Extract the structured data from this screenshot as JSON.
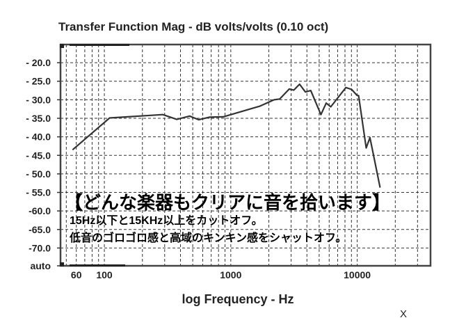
{
  "chart_data": {
    "type": "line",
    "title": "Transfer Function Mag - dB volts/volts (0.10 oct)",
    "xlabel": "log Frequency - Hz",
    "ylabel": "",
    "xscale": "log",
    "xlim": [
      45,
      38000
    ],
    "ylim": [
      -74.8,
      -15.1
    ],
    "grid": true,
    "x_ticks": [
      {
        "value": 60,
        "label": "60"
      },
      {
        "value": 100,
        "label": "100"
      },
      {
        "value": 1000,
        "label": "1000"
      },
      {
        "value": 10000,
        "label": "10000"
      }
    ],
    "y_ticks": [
      {
        "value": -20,
        "label": "- 20.0"
      },
      {
        "value": -25,
        "label": "- 25.0"
      },
      {
        "value": -30,
        "label": "- 30.0"
      },
      {
        "value": -35,
        "label": "- 35.0"
      },
      {
        "value": -40,
        "label": "- 40.0"
      },
      {
        "value": -45,
        "label": "- 45.0"
      },
      {
        "value": -50,
        "label": "- 50.0"
      },
      {
        "value": -55,
        "label": "- 55.0"
      },
      {
        "value": -60,
        "label": "-60.0"
      },
      {
        "value": -65,
        "label": "-65.0"
      },
      {
        "value": -70,
        "label": "-70.0"
      },
      {
        "value": -74.8,
        "label": "auto"
      }
    ],
    "series": [
      {
        "color": "#333333",
        "x": [
          56,
          110,
          290,
          374,
          472,
          558,
          676,
          871,
          1706,
          2200,
          2440,
          2900,
          3150,
          3500,
          3890,
          4290,
          5160,
          5680,
          6180,
          8130,
          9030,
          9950,
          10250,
          11780,
          12600,
          15170
        ],
        "y": [
          -43.5,
          -34.9,
          -34.0,
          -35.3,
          -34.4,
          -35.4,
          -34.7,
          -34.6,
          -31.7,
          -30.0,
          -29.8,
          -27.1,
          -27.4,
          -25.8,
          -27.9,
          -27.5,
          -34.0,
          -30.9,
          -31.9,
          -26.7,
          -27.2,
          -28.8,
          -28.9,
          -43.0,
          -40.2,
          -53.7
        ]
      }
    ],
    "annotations": [
      "【どんな楽器もクリアに音を拾います】",
      "15Hz以下と15KHz以上をカットオフ。",
      "低音のゴロゴロ感と高域のキンキン感をシャットオフ。"
    ]
  },
  "corner_mark": "X"
}
